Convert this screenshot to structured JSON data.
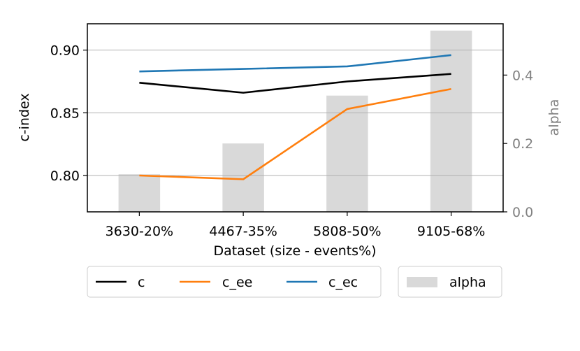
{
  "chart_data": {
    "type": "line",
    "categories": [
      "3630-20%",
      "4467-35%",
      "5808-50%",
      "9105-68%"
    ],
    "xlabel": "Dataset (size - events%)",
    "ylabel": "c-index",
    "ylim": [
      0.771,
      0.921
    ],
    "yticks": [
      0.8,
      0.85,
      0.9
    ],
    "ytick_labels": [
      "0.80",
      "0.85",
      "0.90"
    ],
    "y2label": "alpha",
    "y2lim": [
      0.0,
      0.55
    ],
    "y2ticks": [
      0.0,
      0.2,
      0.4
    ],
    "y2tick_labels": [
      "0.0",
      "0.2",
      "0.4"
    ],
    "grid": "y-major",
    "series": [
      {
        "name": "c",
        "values": [
          0.874,
          0.866,
          0.875,
          0.881
        ],
        "color": "#000000",
        "axis": "left",
        "kind": "line"
      },
      {
        "name": "c_ee",
        "values": [
          0.8,
          0.797,
          0.853,
          0.869
        ],
        "color": "#ff7f0e",
        "axis": "left",
        "kind": "line"
      },
      {
        "name": "c_ec",
        "values": [
          0.883,
          0.885,
          0.887,
          0.896
        ],
        "color": "#1f77b4",
        "axis": "left",
        "kind": "line"
      },
      {
        "name": "alpha",
        "values": [
          0.11,
          0.2,
          0.34,
          0.53
        ],
        "color": "#d9d9d9",
        "axis": "right",
        "kind": "bar"
      }
    ],
    "legend_lines": {
      "position": "bottom-left",
      "labels": [
        "c",
        "c_ee",
        "c_ec"
      ]
    },
    "legend_bars": {
      "position": "bottom-right",
      "labels": [
        "alpha"
      ]
    }
  }
}
